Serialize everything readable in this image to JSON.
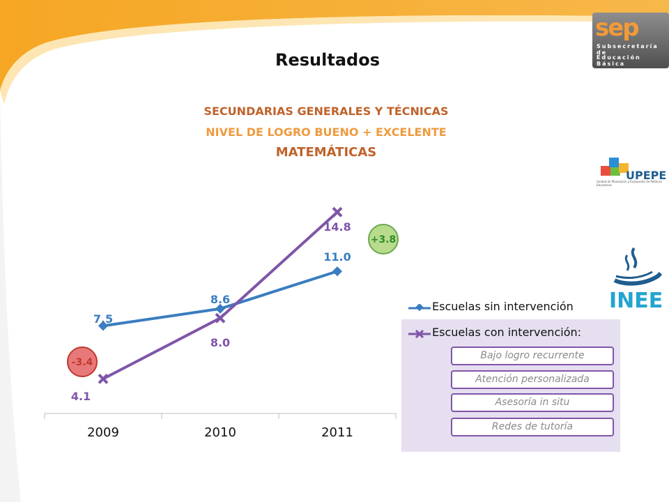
{
  "slide": {
    "title": "Resultados",
    "subtitle_lines": [
      "SECUNDARIAS GENERALES Y TÉCNICAS",
      "NIVEL DE LOGRO BUENO + EXCELENTE",
      "MATEMÁTICAS"
    ]
  },
  "logos": {
    "sep": {
      "word": "sep",
      "line1": "Subsecretaría de",
      "line2": "Educación Básica"
    },
    "upepe": {
      "name": "UPEPE",
      "tagline": "Unidad de Planeación y Evaluación de Políticas Educativas"
    },
    "inee": {
      "name": "INEE"
    }
  },
  "legend": {
    "items": [
      "Escuelas sin intervención",
      "Escuelas con intervención:"
    ],
    "sub_items": [
      "Bajo logro recurrente",
      "Atención personalizada",
      "Asesoría in situ",
      "Redes de tutoría"
    ]
  },
  "chart_data": {
    "type": "line",
    "categories": [
      "2009",
      "2010",
      "2011"
    ],
    "series": [
      {
        "name": "Escuelas sin intervención",
        "values": [
          7.5,
          8.6,
          11.0
        ],
        "labels": [
          "7.5",
          "8.6",
          "11.0"
        ],
        "color": "#3a7dc0",
        "marker": "diamond"
      },
      {
        "name": "Escuelas con intervención:",
        "values": [
          4.1,
          8.0,
          14.8
        ],
        "labels": [
          "4.1",
          "8.0",
          "14.8"
        ],
        "color": "#7f55a8",
        "marker": "x"
      }
    ],
    "annotations": [
      {
        "text": "-3.4",
        "color": "#e8797a",
        "border": "#c0392b",
        "text_color": "#c0392b"
      },
      {
        "text": "+3.8",
        "color": "#b8dc8c",
        "border": "#6aa84f",
        "text_color": "#2e8b2e"
      }
    ],
    "ylim": [
      0,
      16
    ],
    "grid": false
  }
}
